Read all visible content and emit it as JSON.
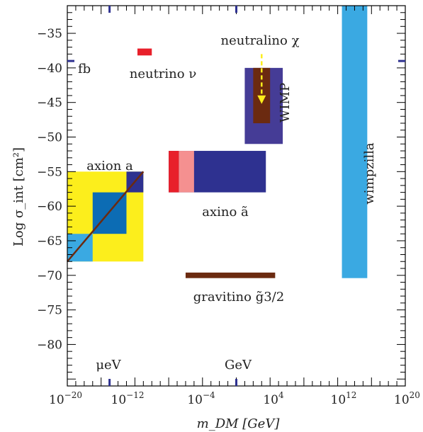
{
  "chart_data": {
    "type": "region",
    "title": "",
    "xlabel": "m_DM [GeV]",
    "ylabel": "Log σ_int [cm²]",
    "xscale": "log10",
    "xlim": [
      -20,
      20
    ],
    "ylim": [
      -86,
      -31
    ],
    "x_tick_labels": [
      {
        "exp": -20,
        "text": "10−20"
      },
      {
        "exp": -12,
        "text": "10−12"
      },
      {
        "exp": -4,
        "text": "10−4"
      },
      {
        "exp": 4,
        "text": "104"
      },
      {
        "exp": 12,
        "text": "1012"
      },
      {
        "exp": 20,
        "text": "1020"
      }
    ],
    "y_tick_labels": [
      {
        "value": -35,
        "text": "−35"
      },
      {
        "value": -40,
        "text": "−40"
      },
      {
        "value": -45,
        "text": "−45"
      },
      {
        "value": -50,
        "text": "−50"
      },
      {
        "value": -55,
        "text": "−55"
      },
      {
        "value": -60,
        "text": "−60"
      },
      {
        "value": -65,
        "text": "−65"
      },
      {
        "value": -70,
        "text": "−70"
      },
      {
        "value": -75,
        "text": "−75"
      },
      {
        "value": -80,
        "text": "−80"
      }
    ],
    "reference_labels": [
      {
        "text": "fb",
        "position": "left axis at -39"
      },
      {
        "text": "μeV",
        "position": "bottom axis at 10^-15"
      },
      {
        "text": "GeV",
        "position": "bottom axis at 10^0"
      }
    ],
    "regions": [
      {
        "name": "neutrino ν",
        "color": "#e8202a",
        "x": [
          -11.7,
          -10
        ],
        "y": [
          -38.2,
          -37.2
        ]
      },
      {
        "name": "neutralino χ WIMP",
        "color": "#453c96",
        "x": [
          1,
          5.5
        ],
        "y": [
          -51,
          -40
        ]
      },
      {
        "name": "neutralino χ WIMP",
        "color": "#6b2a10",
        "x": [
          2,
          4
        ],
        "y": [
          -48,
          -40
        ]
      },
      {
        "name": "axino ã",
        "color": "#2e3190",
        "x": [
          -8,
          3.5
        ],
        "y": [
          -58,
          -52
        ]
      },
      {
        "name": "axino ã",
        "color": "#e8202a",
        "x": [
          -8,
          -6.8
        ],
        "y": [
          -58,
          -52
        ]
      },
      {
        "name": "axino ã",
        "color": "#f59090",
        "x": [
          -6.8,
          -5
        ],
        "y": [
          -58,
          -52
        ]
      },
      {
        "name": "axion a",
        "color": "#fcee1c",
        "x": [
          -20,
          -11
        ],
        "y": [
          -68,
          -55
        ]
      },
      {
        "name": "axion a",
        "color": "#0c6cb4",
        "x": [
          -17,
          -13
        ],
        "y": [
          -64,
          -58
        ]
      },
      {
        "name": "axion a",
        "color": "#2e3190",
        "x": [
          -13,
          -11
        ],
        "y": [
          -58,
          -55
        ]
      },
      {
        "name": "axion a",
        "color": "#3aa9e2",
        "x": [
          -20,
          -17
        ],
        "y": [
          -68,
          -64
        ]
      },
      {
        "name": "gravitino g̃3/2",
        "color": "#6b2a10",
        "x": [
          -6,
          4.6
        ],
        "y": [
          -70.4,
          -69.6
        ]
      },
      {
        "name": "wimpzilla",
        "color": "#3aa9e2",
        "x": [
          12.5,
          15.5
        ],
        "y": [
          -70.4,
          -31
        ]
      }
    ],
    "lines": [
      {
        "name": "axion a",
        "color": "#6b2a10",
        "points": [
          [
            -20,
            -68
          ],
          [
            -11,
            -55
          ]
        ]
      }
    ],
    "arrows": [
      {
        "name": "neutralino χ",
        "color": "#fcee1c",
        "style": "dashed",
        "from": [
          3,
          -38
        ],
        "to": [
          3,
          -45
        ]
      }
    ],
    "annotations": [
      {
        "text": "neutrino ν"
      },
      {
        "text": "neutralino χ"
      },
      {
        "text": "WIMP"
      },
      {
        "text": "axion a"
      },
      {
        "text": "axino ã"
      },
      {
        "text": "gravitino g̃3/2"
      },
      {
        "text": "wimpzilla"
      }
    ]
  }
}
